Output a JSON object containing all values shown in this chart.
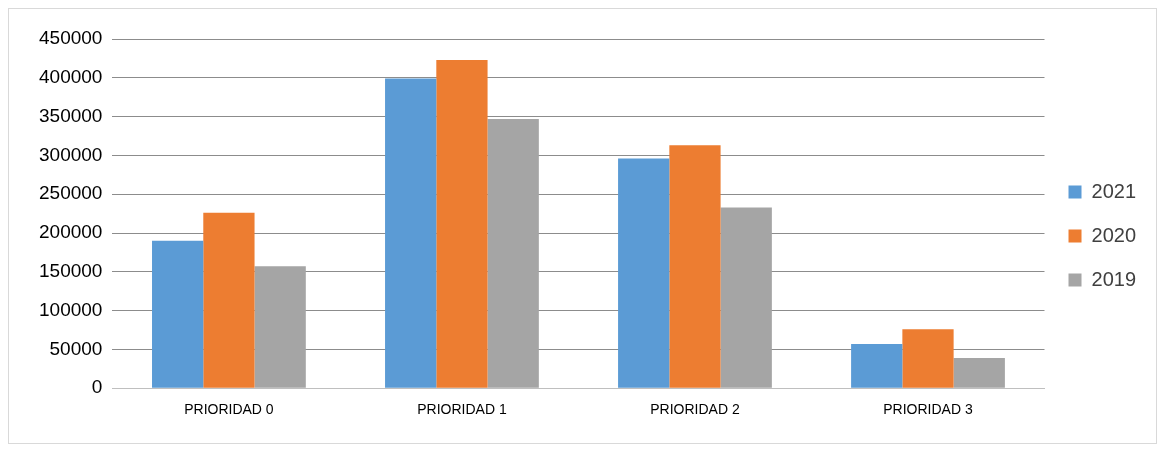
{
  "chart_data": {
    "type": "bar",
    "categories": [
      "PRIORIDAD 0",
      "PRIORIDAD 1",
      "PRIORIDAD 2",
      "PRIORIDAD 3"
    ],
    "series": [
      {
        "name": "2021",
        "color": "#5b9bd5",
        "values": [
          190000,
          399000,
          296000,
          57000
        ]
      },
      {
        "name": "2020",
        "color": "#ed7d31",
        "values": [
          226000,
          423000,
          313000,
          76000
        ]
      },
      {
        "name": "2019",
        "color": "#a5a5a5",
        "values": [
          157000,
          347000,
          233000,
          39000
        ]
      }
    ],
    "ylim": [
      0,
      450000
    ],
    "yticks": [
      0,
      50000,
      100000,
      150000,
      200000,
      250000,
      300000,
      350000,
      400000,
      450000
    ],
    "grid": "y",
    "legend": "right"
  }
}
